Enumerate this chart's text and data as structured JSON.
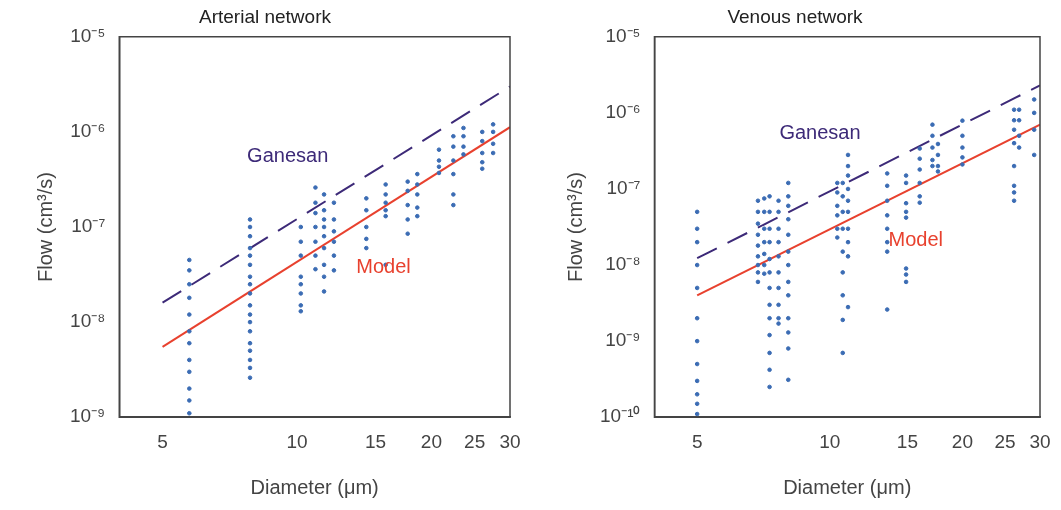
{
  "chart_data": [
    {
      "type": "scatter",
      "title": "Arterial network",
      "xlabel": "Diameter (μm)",
      "ylabel": "Flow (cm³/s)",
      "log": "xy",
      "xlim": [
        4,
        30
      ],
      "ylim": [
        1e-09,
        1e-05
      ],
      "xticks": [
        5,
        10,
        15,
        20,
        25,
        30
      ],
      "yticks": [
        {
          "value": 1e-09,
          "label": "10⁻⁹"
        },
        {
          "value": 1e-08,
          "label": "10⁻⁸"
        },
        {
          "value": 1e-07,
          "label": "10⁻⁷"
        },
        {
          "value": 1e-06,
          "label": "10⁻⁶"
        },
        {
          "value": 1e-05,
          "label": "10⁻⁵"
        }
      ],
      "marker": "circle",
      "series": [
        {
          "type": "scatter",
          "color": "#3b6cb4",
          "x": [
            5.74,
            5.74,
            5.74,
            5.74,
            5.74,
            5.74,
            5.74,
            5.74,
            5.74,
            5.74,
            5.74,
            5.74,
            7.85,
            7.85,
            7.85,
            7.85,
            7.85,
            7.85,
            7.85,
            7.85,
            7.85,
            7.85,
            7.85,
            7.85,
            7.85,
            7.85,
            7.85,
            7.85,
            7.85,
            7.85,
            10.2,
            10.2,
            10.2,
            10.2,
            10.2,
            10.2,
            10.2,
            10.2,
            11,
            11,
            11,
            11,
            11,
            11,
            11,
            11.5,
            11.5,
            11.5,
            11.5,
            11.5,
            11.5,
            11.5,
            11.5,
            11.5,
            12.1,
            12.1,
            12.1,
            12.1,
            12.1,
            12.1,
            14.3,
            14.3,
            14.3,
            14.3,
            14.3,
            15.8,
            15.8,
            15.8,
            15.8,
            15.8,
            15.8,
            17.7,
            17.7,
            17.7,
            17.7,
            17.7,
            18.6,
            18.6,
            18.6,
            18.6,
            18.6,
            20.8,
            20.8,
            20.8,
            20.8,
            22.4,
            22.4,
            22.4,
            22.4,
            22.4,
            22.4,
            23.6,
            23.6,
            23.6,
            23.6,
            26,
            26,
            26,
            26,
            26,
            27.5,
            27.5,
            27.5,
            27.5
          ],
          "values": [
            4.5e-08,
            3.5e-08,
            2.5e-08,
            1.8e-08,
            1.2e-08,
            8e-09,
            6e-09,
            4e-09,
            3e-09,
            2e-09,
            1.5e-09,
            1.1e-09,
            1.2e-07,
            1e-07,
            8e-08,
            6e-08,
            5e-08,
            4e-08,
            3e-08,
            2.5e-08,
            2e-08,
            1.5e-08,
            1.2e-08,
            1e-08,
            8e-09,
            6e-09,
            5e-09,
            4e-09,
            3.3e-09,
            2.6e-09,
            1e-07,
            7e-08,
            5e-08,
            3e-08,
            2.5e-08,
            2e-08,
            1.5e-08,
            1.3e-08,
            2.6e-07,
            1.8e-07,
            1.4e-07,
            1e-07,
            7e-08,
            5e-08,
            3.6e-08,
            2.2e-07,
            1.5e-07,
            1.2e-07,
            1e-07,
            8e-08,
            6e-08,
            4e-08,
            3e-08,
            2.1e-08,
            1.8e-07,
            1.2e-07,
            9e-08,
            7e-08,
            5e-08,
            3.5e-08,
            2e-07,
            1.5e-07,
            1e-07,
            7.5e-08,
            6e-08,
            2.8e-07,
            2.2e-07,
            1.8e-07,
            1.5e-07,
            1.3e-07,
            4e-08,
            3e-07,
            2.4e-07,
            1.7e-07,
            1.2e-07,
            8.5e-08,
            3.6e-07,
            2.8e-07,
            2.2e-07,
            1.6e-07,
            1.3e-07,
            6.5e-07,
            5e-07,
            4.3e-07,
            3.7e-07,
            9e-07,
            7e-07,
            5e-07,
            3.6e-07,
            2.2e-07,
            1.7e-07,
            1.1e-06,
            9e-07,
            7e-07,
            5.8e-07,
            1e-06,
            8e-07,
            6e-07,
            4.8e-07,
            4.1e-07,
            1.2e-06,
            1e-06,
            7.5e-07,
            6e-07
          ]
        },
        {
          "type": "line",
          "name": "Ganesan",
          "color": "#3d2a78",
          "line_style": "dashed",
          "marker": "none",
          "x": [
            5,
            30
          ],
          "values": [
            1.6e-08,
            3e-06
          ]
        },
        {
          "type": "line",
          "name": "Model",
          "color": "#e8412e",
          "line_style": "solid",
          "marker": "none",
          "x": [
            5,
            30
          ],
          "values": [
            5.5e-09,
            1.12e-06
          ]
        }
      ]
    },
    {
      "type": "scatter",
      "title": "Venous network",
      "xlabel": "Diameter (μm)",
      "ylabel": "Flow (cm³/s)",
      "log": "xy",
      "xlim": [
        4,
        30
      ],
      "ylim": [
        1e-10,
        1e-05
      ],
      "xticks": [
        5,
        10,
        15,
        20,
        25,
        30
      ],
      "yticks": [
        {
          "value": 1e-10,
          "label": "10⁻¹⁰"
        },
        {
          "value": 1e-09,
          "label": "10⁻⁹"
        },
        {
          "value": 1e-08,
          "label": "10⁻⁸"
        },
        {
          "value": 1e-07,
          "label": "10⁻⁷"
        },
        {
          "value": 1e-06,
          "label": "10⁻⁶"
        },
        {
          "value": 1e-05,
          "label": "10⁻⁵"
        }
      ],
      "marker": "circle",
      "series": [
        {
          "type": "scatter",
          "color": "#3b6cb4",
          "x": [
            5,
            5,
            5,
            5,
            5,
            5,
            5,
            5,
            5,
            5,
            5,
            5,
            6.87,
            6.87,
            6.87,
            6.87,
            6.87,
            6.87,
            6.87,
            6.87,
            6.87,
            7.1,
            7.1,
            7.1,
            7.1,
            7.1,
            7.1,
            7.1,
            7.3,
            7.3,
            7.3,
            7.3,
            7.3,
            7.3,
            7.3,
            7.3,
            7.3,
            7.3,
            7.3,
            7.3,
            7.3,
            7.65,
            7.65,
            7.65,
            7.65,
            7.65,
            7.65,
            7.65,
            7.65,
            7.65,
            7.65,
            8.05,
            8.05,
            8.05,
            8.05,
            8.05,
            8.05,
            8.05,
            8.05,
            8.05,
            8.05,
            8.05,
            8.05,
            8.05,
            10.4,
            10.4,
            10.4,
            10.4,
            10.4,
            10.4,
            10.7,
            10.7,
            10.7,
            10.7,
            10.7,
            10.7,
            10.7,
            10.7,
            10.7,
            11,
            11,
            11,
            11,
            11,
            11,
            11,
            11,
            11,
            11,
            13.5,
            13.5,
            13.5,
            13.5,
            13.5,
            13.5,
            13.5,
            13.5,
            14.9,
            14.9,
            14.9,
            14.9,
            14.9,
            14.9,
            14.9,
            14.9,
            16,
            16,
            16,
            16,
            16,
            16,
            17.1,
            17.1,
            17.1,
            17.1,
            17.1,
            17.6,
            17.6,
            17.6,
            17.6,
            20,
            20,
            20,
            20,
            20,
            26.2,
            26.2,
            26.2,
            26.2,
            26.2,
            26.2,
            26.2,
            26.2,
            26.9,
            26.9,
            26.9,
            26.9,
            29.1,
            29.1,
            29.1,
            29.1
          ],
          "values": [
            5e-08,
            3e-08,
            2e-08,
            1e-08,
            5e-09,
            2e-09,
            1e-09,
            5e-10,
            3e-10,
            2e-10,
            1.5e-10,
            1.1e-10,
            7e-08,
            5e-08,
            3.5e-08,
            2.5e-08,
            1.8e-08,
            1.3e-08,
            1e-08,
            8e-09,
            6e-09,
            7.5e-08,
            5e-08,
            3e-08,
            2e-08,
            1.4e-08,
            1e-08,
            7.7e-09,
            8e-08,
            5e-08,
            3e-08,
            2e-08,
            1.2e-08,
            8e-09,
            5e-09,
            3e-09,
            2e-09,
            1.2e-09,
            7e-10,
            4.2e-10,
            2.5e-10,
            7e-08,
            5e-08,
            3e-08,
            2e-08,
            1.3e-08,
            8e-09,
            5e-09,
            3e-09,
            2e-09,
            1.7e-09,
            1.2e-07,
            8e-08,
            6e-08,
            4e-08,
            2.5e-08,
            1.5e-08,
            1e-08,
            6e-09,
            4e-09,
            2e-09,
            1.3e-09,
            8e-10,
            3.1e-10,
            1.2e-07,
            9e-08,
            6e-08,
            4.5e-08,
            3e-08,
            2.3e-08,
            1.2e-07,
            8e-08,
            5e-08,
            3e-08,
            1.5e-08,
            8e-09,
            4e-09,
            1.9e-09,
            7e-10,
            2.8e-07,
            2e-07,
            1.5e-07,
            1e-07,
            7e-08,
            5e-08,
            3e-08,
            2e-08,
            1.3e-08,
            2.8e-09,
            1.6e-07,
            1.1e-07,
            7e-08,
            4.5e-08,
            3e-08,
            2e-08,
            1.5e-08,
            2.6e-09,
            1.5e-07,
            1.2e-07,
            6.5e-08,
            5e-08,
            4.2e-08,
            9e-09,
            7.5e-09,
            6e-09,
            3.4e-07,
            2.5e-07,
            1.8e-07,
            1.2e-07,
            8e-08,
            6.6e-08,
            7e-07,
            5e-07,
            3.5e-07,
            2.4e-07,
            2e-07,
            3.9e-07,
            2.8e-07,
            2e-07,
            1.7e-07,
            7.9e-07,
            5e-07,
            3.5e-07,
            2.6e-07,
            2.1e-07,
            1.1e-06,
            8e-07,
            6e-07,
            4e-07,
            2e-07,
            1.1e-07,
            9e-08,
            7e-08,
            1.1e-06,
            8e-07,
            5e-07,
            3.5e-07,
            1.5e-06,
            1e-06,
            6e-07,
            2.8e-07
          ]
        },
        {
          "type": "line",
          "name": "Ganesan",
          "color": "#3d2a78",
          "line_style": "dashed",
          "marker": "none",
          "x": [
            5,
            30
          ],
          "values": [
            1.23e-08,
            2.3e-06
          ]
        },
        {
          "type": "line",
          "name": "Model",
          "color": "#e8412e",
          "line_style": "solid",
          "marker": "none",
          "x": [
            5,
            30
          ],
          "values": [
            4e-09,
            7e-07
          ]
        }
      ]
    }
  ]
}
